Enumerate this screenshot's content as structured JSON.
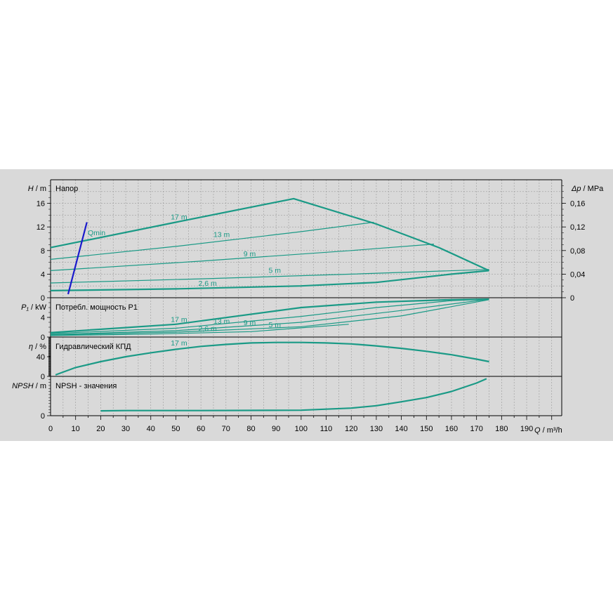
{
  "chart_data": {
    "type": "line",
    "x_axis": {
      "label_symbol": "Q",
      "label_unit": "m³/h",
      "range": [
        0,
        204
      ],
      "ticks": [
        0,
        10,
        20,
        30,
        40,
        50,
        60,
        70,
        80,
        90,
        100,
        110,
        120,
        130,
        140,
        150,
        160,
        170,
        180,
        190
      ]
    },
    "panels": [
      {
        "id": "head",
        "title": "Напор",
        "y_label_symbol": "H",
        "y_label_unit": "m",
        "ylim": [
          0,
          20
        ],
        "y_ticks": [
          0,
          4,
          8,
          12,
          16
        ],
        "right_label_symbol": "Δp",
        "right_label_unit": "MPa",
        "right_ylim": [
          0,
          0.2
        ],
        "right_ticks": [
          "0",
          "0,04",
          "0,08",
          "0,12",
          "0,16"
        ],
        "qmin_label": "Qmin",
        "qmin_line": [
          [
            7,
            0.6
          ],
          [
            14.5,
            12.8
          ]
        ],
        "series": [
          {
            "name": "17 m",
            "x": [
              0,
              50,
              97,
              130,
              155,
              175
            ],
            "y": [
              8.5,
              12.8,
              16.8,
              12.5,
              8.5,
              4.6
            ],
            "label_at": [
              48,
              13.3
            ]
          },
          {
            "name": "13 m",
            "x": [
              0,
              50,
              100,
              129
            ],
            "y": [
              6.5,
              8.7,
              11.2,
              12.8
            ],
            "label_at": [
              65,
              10.3
            ]
          },
          {
            "name": "9 m",
            "x": [
              0,
              60,
              120,
              153
            ],
            "y": [
              4.6,
              6.2,
              8.0,
              9.1
            ],
            "label_at": [
              77,
              7.0
            ]
          },
          {
            "name": "5 m",
            "x": [
              0,
              60,
              120,
              175
            ],
            "y": [
              2.5,
              3.2,
              4.0,
              4.8
            ],
            "label_at": [
              87,
              4.2
            ]
          },
          {
            "name": "2,6 m",
            "x": [
              0,
              50,
              100,
              130,
              160,
              175
            ],
            "y": [
              1.2,
              1.5,
              2.0,
              2.6,
              4.0,
              4.6
            ],
            "label_at": [
              59,
              2.0
            ]
          }
        ]
      },
      {
        "id": "power",
        "title": "Потребл. мощность P1",
        "y_label_symbol": "P₁",
        "y_label_unit": "kW",
        "ylim": [
          0,
          8
        ],
        "y_ticks": [
          0,
          4
        ],
        "series": [
          {
            "name": "17 m",
            "x": [
              0,
              50,
              100,
              130,
              160,
              175
            ],
            "y": [
              0.9,
              2.6,
              6.0,
              7.1,
              7.6,
              7.7
            ],
            "label_at": [
              48,
              3.1
            ]
          },
          {
            "name": "13 m",
            "x": [
              0,
              50,
              100,
              130,
              160,
              175
            ],
            "y": [
              0.7,
              1.8,
              4.2,
              6.0,
              7.4,
              7.7
            ],
            "label_at": [
              65,
              2.7
            ]
          },
          {
            "name": "9 m",
            "x": [
              0,
              50,
              100,
              140,
              175
            ],
            "y": [
              0.5,
              1.3,
              3.0,
              5.4,
              7.7
            ],
            "label_at": [
              77,
              2.4
            ]
          },
          {
            "name": "5 m",
            "x": [
              0,
              50,
              100,
              140,
              175
            ],
            "y": [
              0.4,
              1.0,
              2.1,
              4.3,
              7.6
            ],
            "label_at": [
              87,
              2.0
            ]
          },
          {
            "name": "2,6 m",
            "x": [
              0,
              40,
              80,
              119
            ],
            "y": [
              0.3,
              0.6,
              1.1,
              2.6
            ],
            "label_at": [
              59,
              1.2
            ]
          }
        ]
      },
      {
        "id": "efficiency",
        "title": "Гидравлический КПД",
        "y_label_symbol": "η",
        "y_label_unit": "%",
        "ylim": [
          0,
          80
        ],
        "y_ticks": [
          0,
          40
        ],
        "series": [
          {
            "name": "17 m",
            "x": [
              2,
              10,
              20,
              30,
              40,
              50,
              60,
              70,
              80,
              90,
              100,
              110,
              120,
              130,
              140,
              150,
              160,
              170,
              175
            ],
            "y": [
              3,
              18,
              30,
              40,
              48,
              55,
              61,
              65,
              68,
              69,
              69,
              68,
              66,
              62,
              57,
              51,
              44,
              35,
              30
            ],
            "label_at": [
              48,
              63
            ]
          }
        ]
      },
      {
        "id": "npsh",
        "title": "NPSH - значения",
        "y_label_symbol": "NPSH",
        "y_label_unit": "m",
        "ylim": [
          0,
          13
        ],
        "y_ticks": [
          0
        ],
        "series": [
          {
            "name": "",
            "x": [
              20,
              30,
              60,
              100,
              120,
              130,
              140,
              150,
              160,
              170,
              174
            ],
            "y": [
              1.6,
              1.7,
              1.7,
              1.8,
              2.5,
              3.3,
              4.6,
              6.0,
              8.0,
              10.8,
              12.2
            ]
          }
        ]
      }
    ]
  }
}
